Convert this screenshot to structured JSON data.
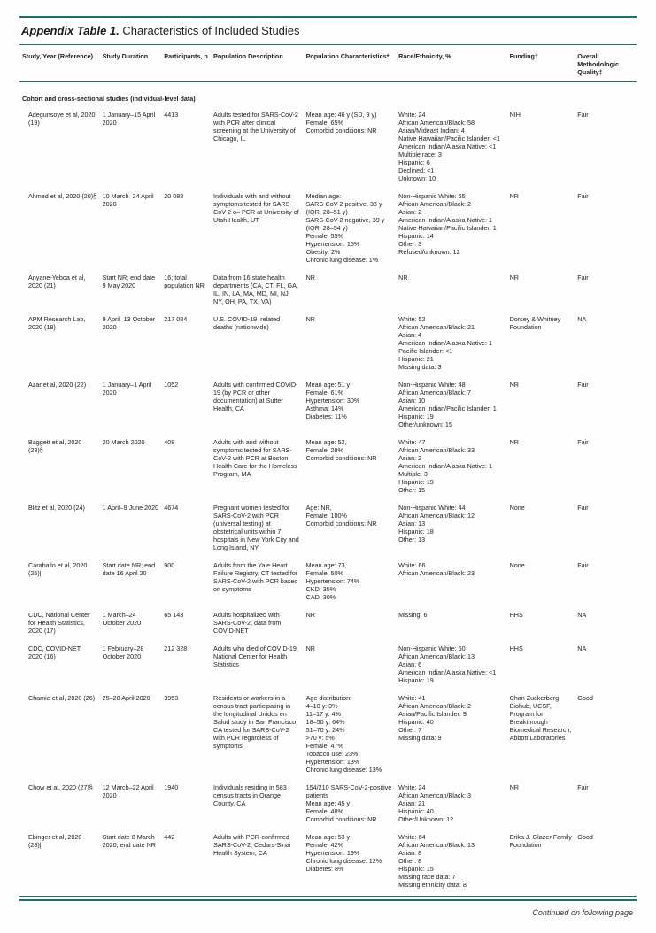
{
  "table_title_lead": "Appendix Table 1.",
  "table_title_rest": " Characteristics of Included Studies",
  "columns": [
    "Study, Year (Reference)",
    "Study Duration",
    "Participants, n",
    "Population Description",
    "Population Characteristics*",
    "Race/Ethnicity, %",
    "Funding†",
    "Overall Methodologic Quality‡"
  ],
  "section_header": "Cohort and cross-sectional studies (individual-level data)",
  "continued": "Continued on following page",
  "rows": [
    {
      "study": "Adegunsoye et al, 2020 (19)",
      "duration": "1 January–15 April 2020",
      "n": "4413",
      "popdesc": "Adults tested for SARS-CoV-2 with PCR after clinical screening at the University of Chicago, IL",
      "popchar": "Mean age: 46 y (SD, 9 y)\nFemale: 65%\nComorbid conditions: NR",
      "race": "White: 24\nAfrican American/Black: 58\nAsian/Mideast Indian: 4\nNative Hawaiian/Pacific Islander: <1\nAmerican Indian/Alaska Native: <1\nMultiple race: 3\nHispanic: 6\nDeclined: <1\nUnknown: 10",
      "funding": "NIH",
      "quality": "Fair"
    },
    {
      "study": "Ahmed et al, 2020 (20)§",
      "duration": "10 March–24 April 2020",
      "n": "20 088",
      "popdesc": "Individuals with and without symptoms tested for SARS-CoV-2 o– PCR at University of Utah Health, UT",
      "popchar": "Median age:\n  SARS-CoV-2 positive, 38 y (IQR, 28–51 y)\n  SARS-CoV-2 negative, 39 y (IQR, 28–54 y)\nFemale: 55%\nHypertension: 15%\nObesity: 2%\nChronic lung disease: 1%",
      "race": "Non-Hispanic White: 65\nAfrican American/Black: 2\nAsian: 2\nAmerican Indian/Alaska Native: 1\nNative Hawaiian/Pacific Islander: 1\nHispanic: 14\nOther: 3\nRefused/unknown: 12",
      "funding": "NR",
      "quality": "Fair"
    },
    {
      "study": "Anyane-Yeboa et al, 2020 (21)",
      "duration": "Start NR; end date 9 May 2020",
      "n": "16; total population NR",
      "popdesc": "Data from 16 state health departments (CA, CT, FL, GA, IL, IN, LA, MA, MD, MI, NJ, NY, OH, PA, TX, VA)",
      "popchar": "NR",
      "race": "NR",
      "funding": "NR",
      "quality": "Fair"
    },
    {
      "study": "APM Research Lab, 2020 (18)",
      "duration": "9 April–13 October 2020",
      "n": "217 084",
      "popdesc": "U.S. COVID-19–related deaths (nationwide)",
      "popchar": "NR",
      "race": "White: 52\nAfrican American/Black: 21\nAsian: 4\nAmerican Indian/Alaska Native: 1\nPacific Islander: <1\nHispanic: 21\nMissing data: 3",
      "funding": "Dorsey & Whitney Foundation",
      "quality": "NA"
    },
    {
      "study": "Azar et al, 2020 (22)",
      "duration": "1 January–1 April 2020",
      "n": "1052",
      "popdesc": "Adults with confirmed COVID-19 (by PCR or other documentation) at Sutter Health, CA",
      "popchar": "Mean age: 51 y\nFemale: 61%\nHypertension: 30%\nAsthma: 14%\nDiabetes: 11%",
      "race": "Non-Hispanic White: 48\nAfrican American/Black: 7\nAsian: 10\nAmerican Indian/Pacific Islander: 1\nHispanic: 19\nOther/unknown: 15",
      "funding": "NR",
      "quality": "Fair"
    },
    {
      "study": "Baggett et al, 2020 (23)§",
      "duration": "20 March 2020",
      "n": "408",
      "popdesc": "Adults with and without symptoms tested for SARS-CoV-2 with PCR at Boston Health Care for the Homeless Program, MA",
      "popchar": "Mean age: 52,\nFemale: 28%\nComorbid conditions: NR",
      "race": "White: 47\nAfrican American/Black: 33\nAsian: 2\nAmerican Indian/Alaska Native: 1\nMultiple: 3\nHispanic: 19\nOther: 15",
      "funding": "NR",
      "quality": "Fair"
    },
    {
      "study": "Blitz et al, 2020 (24)",
      "duration": "1 April–9 June 2020",
      "n": "4674",
      "popdesc": "Pregnant women tested for SARS-CoV-2 with PCR (universal testing) at obstetrical units within 7 hospitals in New York City and Long Island, NY",
      "popchar": "Age: NR,\nFemale: 100%\nComorbid conditions: NR",
      "race": "Non-Hispanic White: 44\nAfrican American/Black: 12\nAsian: 13\nHispanic: 18\nOther: 13",
      "funding": "None",
      "quality": "Fair"
    },
    {
      "study": "Caraballo et al, 2020 (25)||",
      "duration": "Start date NR; end date 16 April 20",
      "n": "900",
      "popdesc": "Adults from the Yale Heart Failure Registry, CT tested for SARS-CoV-2 with PCR based on symptoms",
      "popchar": "Mean age: 73,\nFemale: 50%\nHypertension: 74%\nCKD: 35%\nCAD: 30%",
      "race": "White: 66\nAfrican American/Black: 23",
      "funding": "None",
      "quality": "Fair"
    },
    {
      "study": "CDC, National Center for Health Statistics, 2020 (17)",
      "duration": "1 March–24 October 2020",
      "n": "65 143",
      "popdesc": "Adults hospitalized with SARS-CoV-2, data from COVID-NET",
      "popchar": "NR",
      "race": "Missing: 6",
      "funding": "HHS",
      "quality": "NA"
    },
    {
      "study": "CDC, COVID-NET, 2020 (16)",
      "duration": "1 February–28 October 2020",
      "n": "212 328",
      "popdesc": "Adults who died of COVID-19, National Center for Health Statistics",
      "popchar": "NR",
      "race": "Non-Hispanic White: 60\nAfrican American/Black: 13\nAsian: 6\nAmerican Indian/Alaska Native: <1\nHispanic: 19",
      "funding": "HHS",
      "quality": "NA"
    },
    {
      "study": "Chamie et al, 2020 (26)",
      "duration": "25–28 April 2020",
      "n": "3953",
      "popdesc": "Residents or workers in a census tract participating in the longitudinal Unidos en Salud study in San Francisco, CA tested for SARS-CoV-2 with PCR regardless of symptoms",
      "popchar": "Age distribution:\n  4–10 y: 3%\n  11–17 y: 4%\n  18–50 y: 64%\n  51–70 y: 24%\n  >70 y: 5%\nFemale: 47%\nTobacco use: 23%\nHypertension: 13%\nChronic lung disease: 13%",
      "race": "White: 41\nAfrican American/Black: 2\nAsian/Pacific Islander: 9\nHispanic: 40\nOther: 7\nMissing data: 9",
      "funding": "Chan Zuckerberg Biohub, UCSF, Program for Breakthrough Biomedical Research, Abbott Laboratories",
      "quality": "Good"
    },
    {
      "study": "Chow et al, 2020 (27)§",
      "duration": "12 March–22 April 2020",
      "n": "1940",
      "popdesc": "Individuals residing in 583 census tracts in Orange County, CA",
      "popchar": "154/210 SARS-CoV-2-positive patients\nMean age: 45 y\nFemale: 48%\nComorbid conditions: NR",
      "race": "White: 24\nAfrican American/Black: 3\nAsian: 21\nHispanic: 40\nOther/Unknown: 12",
      "funding": "NR",
      "quality": "Fair"
    },
    {
      "study": "Ebinger et al, 2020 (28)||",
      "duration": "Start date 8 March 2020; end date NR",
      "n": "442",
      "popdesc": "Adults with PCR-confirmed SARS-CoV-2, Cedars-Sinai Health System, CA",
      "popchar": "Mean age: 53 y\nFemale: 42%\nHypertension: 19%\nChronic lung disease: 12%\nDiabetes: 8%",
      "race": "White: 64\nAfrican American/Black: 13\nAsian: 8\nOther: 8\nHispanic: 15\nMissing race data: 7\nMissing ethnicity data: 8",
      "funding": "Erika J. Glazer Family Foundation",
      "quality": "Good"
    }
  ]
}
